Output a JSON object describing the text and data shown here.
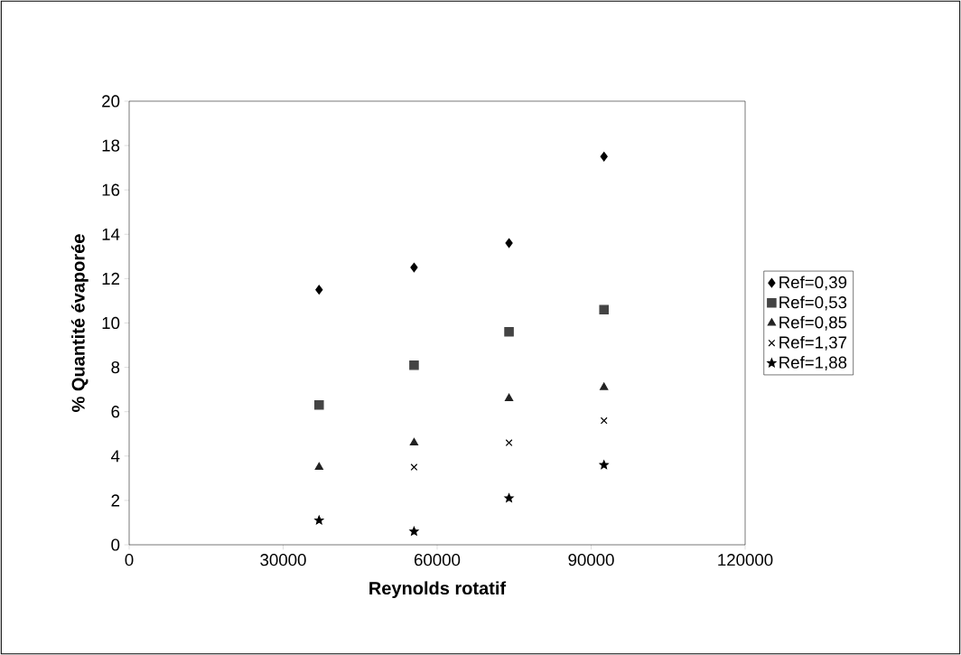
{
  "chart_data": {
    "type": "scatter",
    "xlabel": "Reynolds rotatif",
    "ylabel": "% Quantité évaporée",
    "x": [
      37000,
      55500,
      74000,
      92500
    ],
    "series": [
      {
        "name": "Ref=0,39",
        "color": "#000000",
        "marker": "diamond",
        "values": [
          11.5,
          12.5,
          13.6,
          17.5
        ]
      },
      {
        "name": "Ref=0,53",
        "color": "#444444",
        "marker": "square",
        "values": [
          6.3,
          8.1,
          9.6,
          10.6
        ]
      },
      {
        "name": "Ref=0,85",
        "color": "#222222",
        "marker": "triangle",
        "values": [
          3.5,
          4.6,
          6.6,
          7.1
        ]
      },
      {
        "name": "Ref=1,37",
        "color": "#000000",
        "marker": "cross",
        "values": [
          null,
          3.5,
          4.6,
          5.6
        ]
      },
      {
        "name": "Ref=1,88",
        "color": "#000000",
        "marker": "star",
        "values": [
          1.1,
          0.6,
          2.1,
          3.6
        ]
      }
    ],
    "xlim": [
      0,
      120000
    ],
    "xticks": [
      0,
      30000,
      60000,
      90000,
      120000
    ],
    "ylim": [
      0,
      20
    ],
    "yticks": [
      0,
      2,
      4,
      6,
      8,
      10,
      12,
      14,
      16,
      18,
      20
    ],
    "grid": false,
    "legend": "right"
  }
}
